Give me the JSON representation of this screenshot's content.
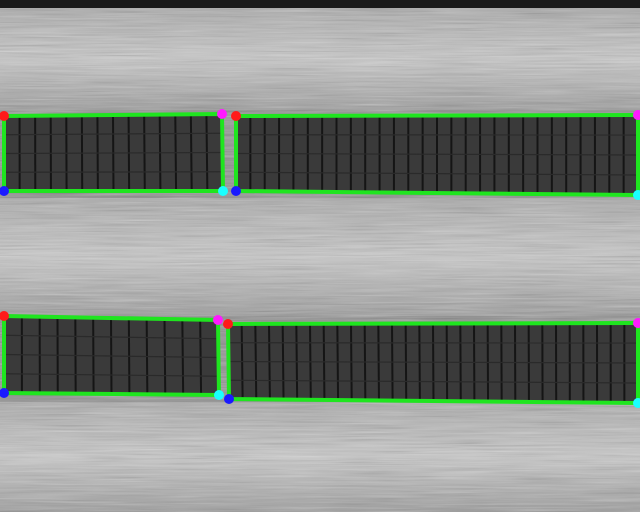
{
  "image": {
    "description_kind": "aerial-thermal-solar-panel-rows",
    "colors": {
      "ground_light": "#bdbdbd",
      "ground_dark": "#5e5e5e",
      "panel_fill": "#3a3a3a",
      "panel_grid": "#151515",
      "box_outline": "#1fe51f",
      "corner_top_left": "#ff1a1a",
      "corner_top_right": "#ff1aff",
      "corner_bottom_left": "#1a1aff",
      "corner_bottom_right": "#1affff"
    }
  },
  "detections": [
    {
      "label": "panel-row-1-left"
    },
    {
      "label": "panel-row-1-right"
    },
    {
      "label": "panel-row-2-left"
    },
    {
      "label": "panel-row-2-right"
    }
  ]
}
